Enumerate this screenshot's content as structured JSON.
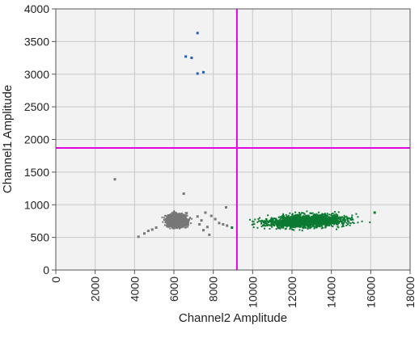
{
  "chart_data": {
    "type": "scatter",
    "xlabel": "Channel2 Amplitude",
    "ylabel": "Channel1 Amplitude",
    "xlim": [
      0,
      18000
    ],
    "ylim": [
      0,
      4000
    ],
    "x_ticks": [
      0,
      2000,
      4000,
      6000,
      8000,
      10000,
      12000,
      14000,
      16000,
      18000
    ],
    "y_ticks": [
      0,
      500,
      1000,
      1500,
      2000,
      2500,
      3000,
      3500,
      4000
    ],
    "grid": true,
    "legend": "none",
    "thresholds": {
      "x": 9200,
      "y": 1870,
      "color": "#e000e0"
    },
    "colors": {
      "background": "#f2f2f2",
      "grid": "#c8c8c8"
    },
    "series": [
      {
        "color": "#1f5fbf",
        "clusters": [],
        "points": [
          [
            7200,
            3630
          ],
          [
            6600,
            3270
          ],
          [
            6900,
            3250
          ],
          [
            7200,
            3010
          ],
          [
            7500,
            3030
          ]
        ]
      },
      {
        "color": "#0b7a32",
        "clusters": [
          {
            "x": [
              9300,
              16200
            ],
            "y": [
              620,
              980
            ],
            "y_trend": [
              700,
              800
            ],
            "count": 1700
          }
        ],
        "points": [
          [
            8950,
            650
          ],
          [
            16200,
            880
          ]
        ]
      },
      {
        "color": "#777777",
        "clusters": [
          {
            "x": [
              5200,
              7100
            ],
            "y": [
              600,
              950
            ],
            "y_trend": [
              760,
              760
            ],
            "count": 2200
          }
        ],
        "points": [
          [
            3000,
            1390
          ],
          [
            6500,
            1170
          ],
          [
            8650,
            960
          ],
          [
            4200,
            510
          ],
          [
            4500,
            560
          ],
          [
            4700,
            600
          ],
          [
            4900,
            620
          ],
          [
            5100,
            650
          ],
          [
            7300,
            700
          ],
          [
            7500,
            610
          ],
          [
            7700,
            660
          ],
          [
            7900,
            830
          ],
          [
            8100,
            780
          ],
          [
            8300,
            720
          ],
          [
            8500,
            700
          ],
          [
            7600,
            880
          ],
          [
            7200,
            820
          ],
          [
            7800,
            540
          ],
          [
            8700,
            680
          ],
          [
            7400,
            760
          ]
        ]
      }
    ]
  }
}
